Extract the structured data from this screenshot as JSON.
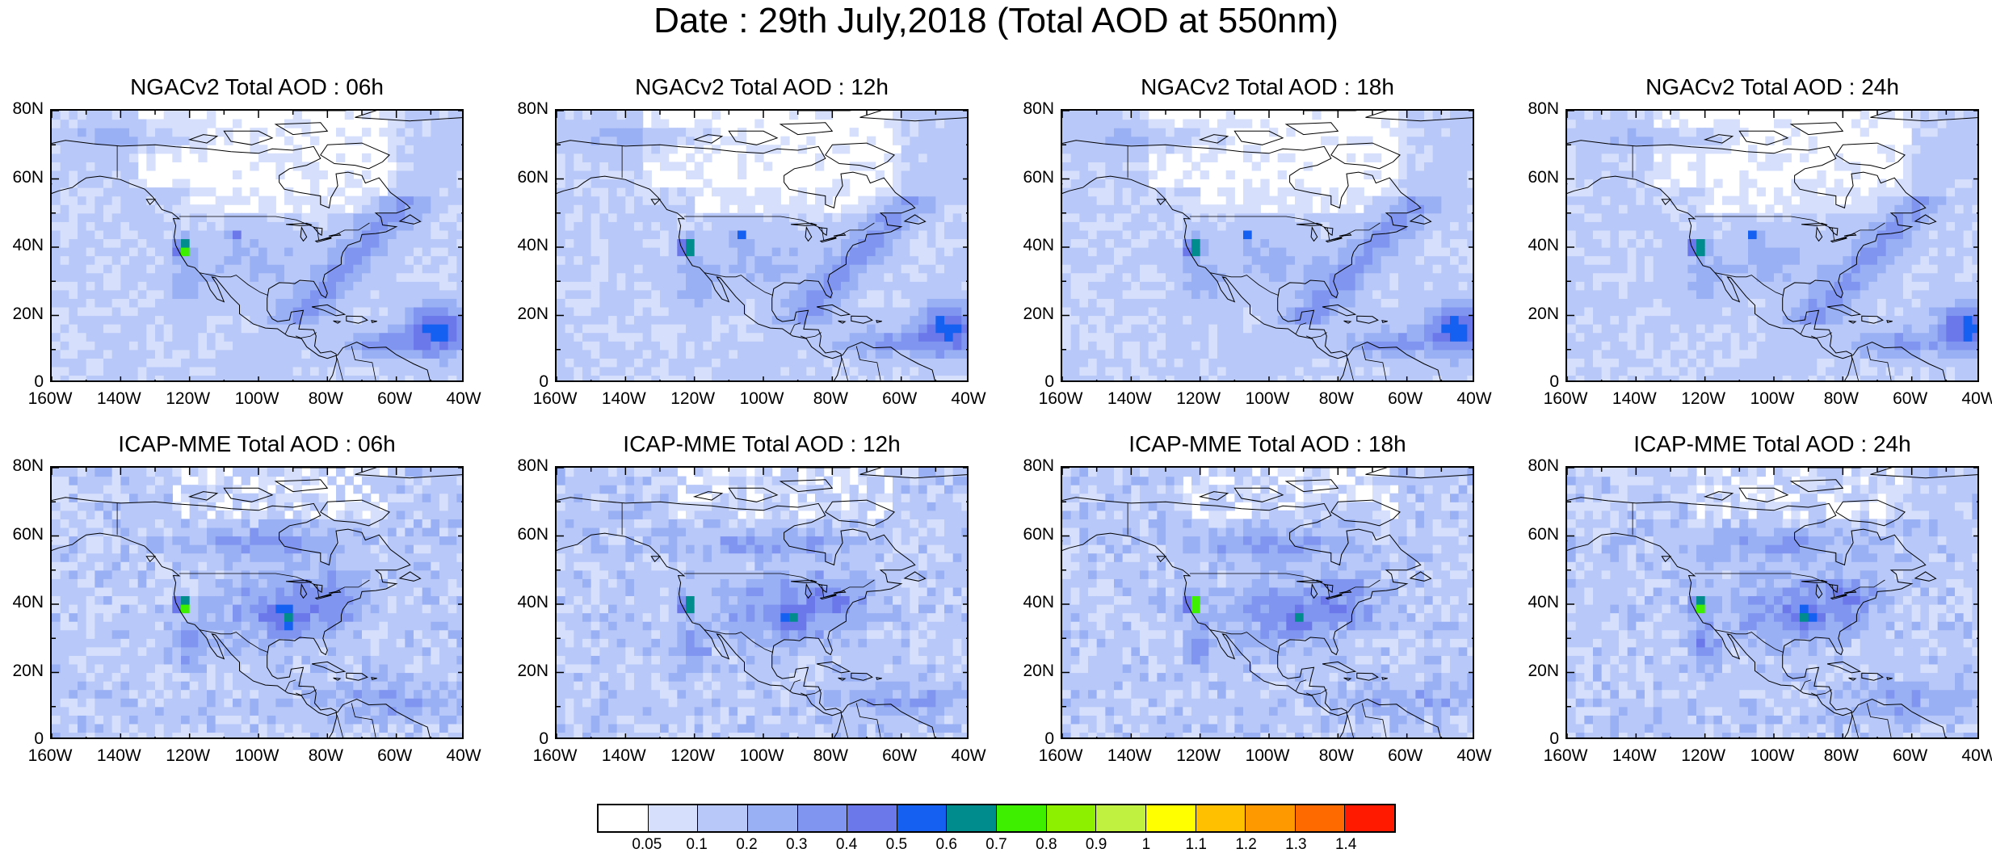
{
  "figure": {
    "title": "Date : 29th July,2018 (Total AOD at 550nm)"
  },
  "panels": [
    {
      "title": "NGACv2 Total AOD : 06h",
      "model": "NGACv2",
      "forecast_hour": "06h"
    },
    {
      "title": "NGACv2 Total AOD : 12h",
      "model": "NGACv2",
      "forecast_hour": "12h"
    },
    {
      "title": "NGACv2 Total AOD : 18h",
      "model": "NGACv2",
      "forecast_hour": "18h"
    },
    {
      "title": "NGACv2 Total AOD : 24h",
      "model": "NGACv2",
      "forecast_hour": "24h"
    },
    {
      "title": "ICAP-MME Total AOD : 06h",
      "model": "ICAP-MME",
      "forecast_hour": "06h"
    },
    {
      "title": "ICAP-MME Total AOD : 12h",
      "model": "ICAP-MME",
      "forecast_hour": "12h"
    },
    {
      "title": "ICAP-MME Total AOD : 18h",
      "model": "ICAP-MME",
      "forecast_hour": "18h"
    },
    {
      "title": "ICAP-MME Total AOD : 24h",
      "model": "ICAP-MME",
      "forecast_hour": "24h"
    }
  ],
  "axes": {
    "lat_ticks": [
      "80N",
      "60N",
      "40N",
      "20N",
      "0"
    ],
    "lon_ticks": [
      "160W",
      "140W",
      "120W",
      "100W",
      "80W",
      "60W",
      "40W"
    ],
    "lat_range": [
      0,
      80
    ],
    "lon_range": [
      -160,
      -40
    ]
  },
  "colorbar": {
    "labels": [
      "0.05",
      "0.1",
      "0.2",
      "0.3",
      "0.4",
      "0.5",
      "0.6",
      "0.7",
      "0.8",
      "0.9",
      "1",
      "1.1",
      "1.2",
      "1.3",
      "1.4"
    ],
    "colors": [
      "#ffffff",
      "#d6e0fc",
      "#b8c8f8",
      "#9ab0f4",
      "#8095f0",
      "#6a78ea",
      "#1560f0",
      "#008c8c",
      "#3ef000",
      "#8cf000",
      "#c0f040",
      "#ffff00",
      "#ffc000",
      "#ff9900",
      "#ff6a00",
      "#ff1a00"
    ]
  },
  "map_colors": {
    "land_outline": "#000000",
    "low_aod": "#d6e0fc",
    "moderate_aod": "#b8c8f8",
    "elevated_aod": "#9ab0f4",
    "high_aod": "#6a78ea",
    "very_high_aod": "#1560f0",
    "smoke_peak": "#3ef000",
    "fire_peak": "#ff6a00",
    "clean_air": "#ffffff"
  },
  "features": {
    "ngac_atlantic_dust_plume_center": {
      "lon": -48,
      "lat": 16
    },
    "smoke_hotspot_california": {
      "lon": -122,
      "lat": 40
    }
  }
}
